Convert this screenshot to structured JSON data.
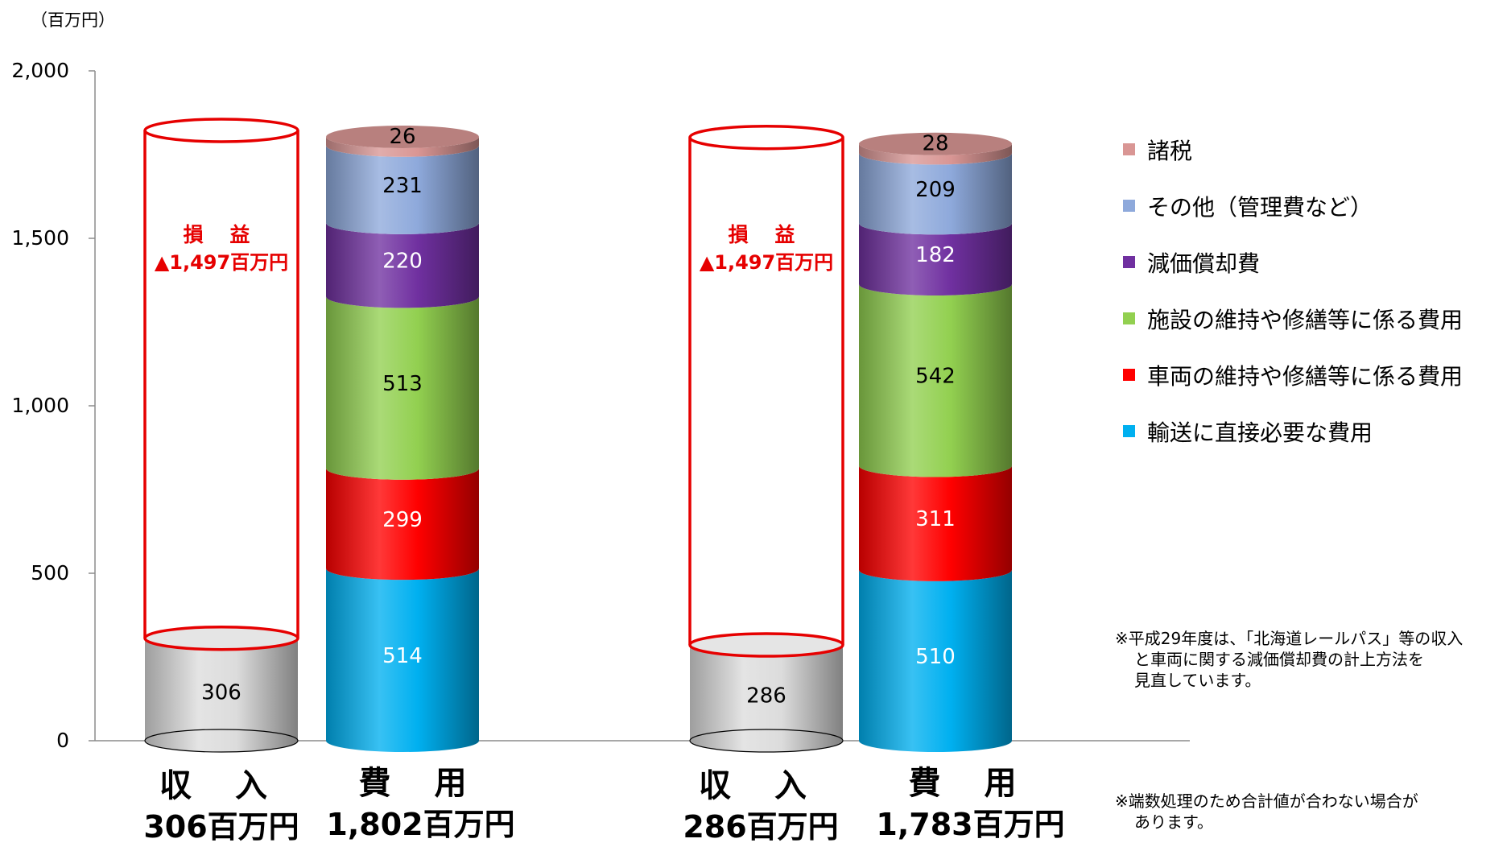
{
  "chart_data": {
    "type": "bar",
    "stacked": true,
    "unit_label": "（百万円）",
    "ylim": [
      0,
      2000
    ],
    "ticks": [
      {
        "v": 0,
        "label": "0"
      },
      {
        "v": 500,
        "label": "500"
      },
      {
        "v": 1000,
        "label": "1,000"
      },
      {
        "v": 1500,
        "label": "1,500"
      },
      {
        "v": 2000,
        "label": "2,000"
      }
    ],
    "legend_position": "right",
    "series": [
      {
        "name": "輸送に直接必要な費用",
        "color": "#00B0F0"
      },
      {
        "name": "車両の維持や修繕等に係る費用",
        "color": "#FF0000"
      },
      {
        "name": "施設の維持や修繕等に係る費用",
        "color": "#92D050"
      },
      {
        "name": "減価償却費",
        "color": "#7030A0"
      },
      {
        "name": "その他（管理費など）",
        "color": "#8EA9DB"
      },
      {
        "name": "諸税",
        "color": "#D99694"
      }
    ],
    "groups": [
      {
        "revenue": {
          "value": 306,
          "label": "306",
          "cap_title": "収 入",
          "cap_amount": "306百万円"
        },
        "loss": {
          "title": "損 益",
          "amount": "▲1,497百万円"
        },
        "expense": {
          "values": [
            514,
            299,
            513,
            220,
            231,
            26
          ],
          "labels": [
            "514",
            "299",
            "513",
            "220",
            "231",
            "26"
          ],
          "total": 1802,
          "cap_title": "費 用",
          "cap_amount": "1,802百万円"
        }
      },
      {
        "revenue": {
          "value": 286,
          "label": "286",
          "cap_title": "収 入",
          "cap_amount": "286百万円"
        },
        "loss": {
          "title": "損 益",
          "amount": "▲1,497百万円"
        },
        "expense": {
          "values": [
            510,
            311,
            542,
            182,
            209,
            28
          ],
          "labels": [
            "510",
            "311",
            "542",
            "182",
            "209",
            "28"
          ],
          "total": 1783,
          "cap_title": "費 用",
          "cap_amount": "1,783百万円"
        }
      }
    ]
  },
  "legend": [
    {
      "label": "諸税",
      "color": "#D99694"
    },
    {
      "label": "その他（管理費など）",
      "color": "#8EA9DB"
    },
    {
      "label": "減価償却費",
      "color": "#7030A0"
    },
    {
      "label": "施設の維持や修繕等に係る費用",
      "color": "#92D050"
    },
    {
      "label": "車両の維持や修繕等に係る費用",
      "color": "#FF0000"
    },
    {
      "label": "輸送に直接必要な費用",
      "color": "#00B0F0"
    }
  ],
  "notes": {
    "note1": [
      "※平成29年度は、「北海道レールパス」等の収入",
      "と車両に関する減価償却費の計上方法を",
      "見直しています。"
    ],
    "note2": [
      "※端数処理のため合計値が合わない場合が",
      "あります。"
    ]
  }
}
